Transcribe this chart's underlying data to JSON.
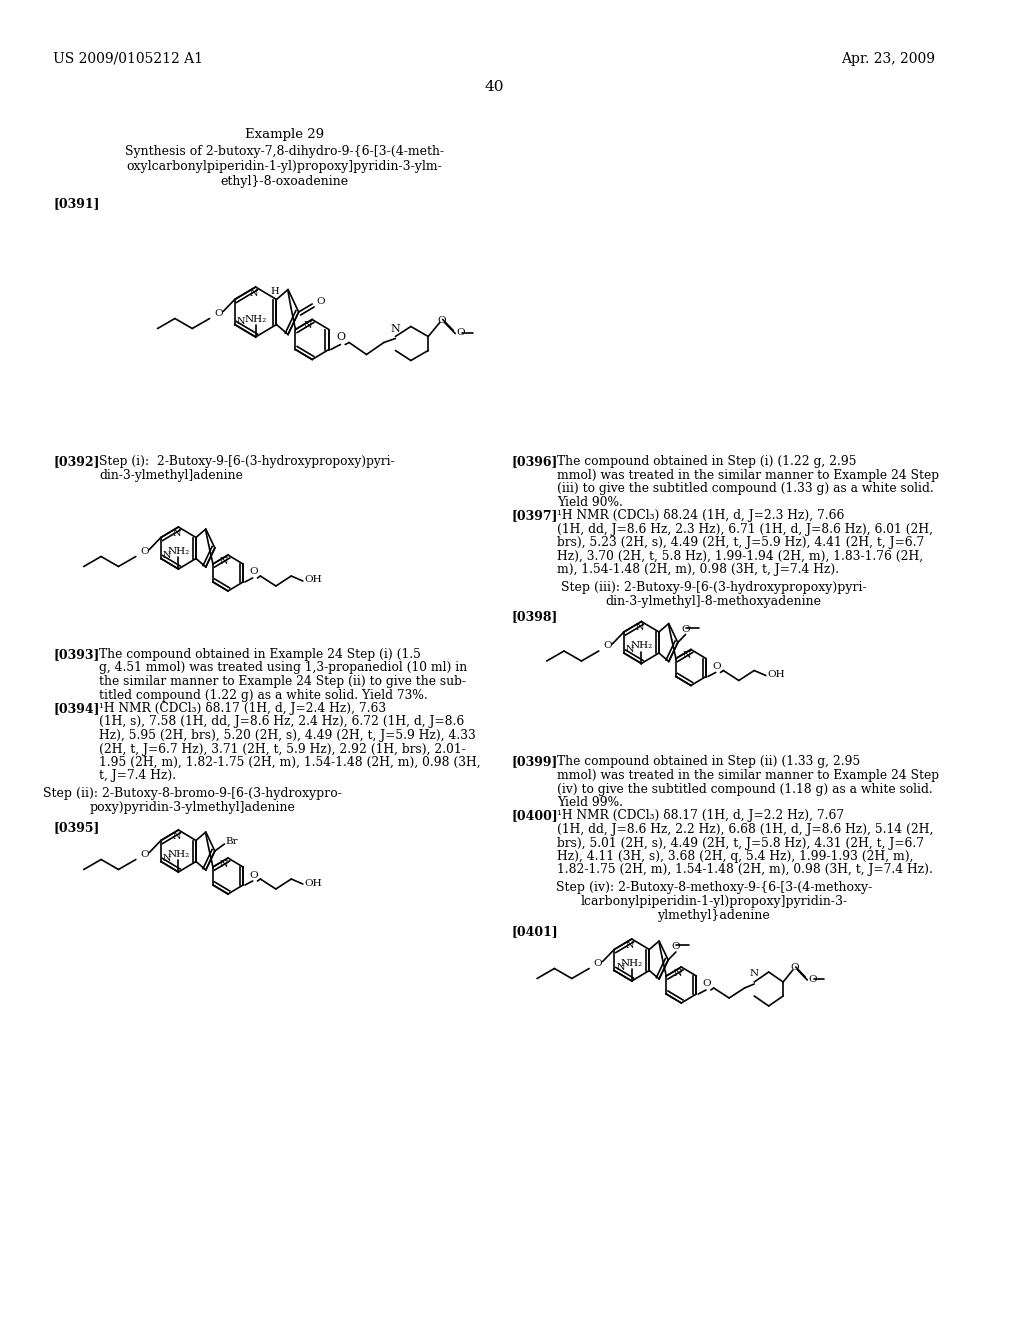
{
  "bg": "#ffffff",
  "header_left": "US 2009/0105212 A1",
  "header_right": "Apr. 23, 2009",
  "page_num": "40",
  "ex_title": "Example 29",
  "ex_sub1": "Synthesis of 2-butoxy-7,8-dihydro-9-{6-[3-(4-meth-",
  "ex_sub2": "oxylcarbonylpiperidin-1-yl)propoxy]pyridin-3-ylm-",
  "ex_sub3": "ethyl}-8-oxoadenine",
  "p391": "[0391]",
  "p392_label": "[0392]",
  "p392_text1": "Step (i):  2-Butoxy-9-[6-(3-hydroxypropoxy)pyri-",
  "p392_text2": "din-3-ylmethyl]adenine",
  "p393_label": "[0393]",
  "p393_lines": [
    "The compound obtained in Example 24 Step (i) (1.5",
    "g, 4.51 mmol) was treated using 1,3-propanediol (10 ml) in",
    "the similar manner to Example 24 Step (ii) to give the sub-",
    "titled compound (1.22 g) as a white solid. Yield 73%."
  ],
  "p394_label": "[0394]",
  "p394_lines": [
    "¹H NMR (CDCl₃) δ8.17 (1H, d, J=2.4 Hz), 7.63",
    "(1H, s), 7.58 (1H, dd, J=8.6 Hz, 2.4 Hz), 6.72 (1H, d, J=8.6",
    "Hz), 5.95 (2H, brs), 5.20 (2H, s), 4.49 (2H, t, J=5.9 Hz), 4.33",
    "(2H, t, J=6.7 Hz), 3.71 (2H, t, 5.9 Hz), 2.92 (1H, brs), 2.01-",
    "1.95 (2H, m), 1.82-1.75 (2H, m), 1.54-1.48 (2H, m), 0.98 (3H,",
    "t, J=7.4 Hz)."
  ],
  "step2_t1": "Step (ii): 2-Butoxy-8-bromo-9-[6-(3-hydroxypro-",
  "step2_t2": "poxy)pyridin-3-ylmethyl]adenine",
  "p395_label": "[0395]",
  "p396_label": "[0396]",
  "p396_lines": [
    "The compound obtained in Step (i) (1.22 g, 2.95",
    "mmol) was treated in the similar manner to Example 24 Step",
    "(iii) to give the subtitled compound (1.33 g) as a white solid.",
    "Yield 90%."
  ],
  "p397_label": "[0397]",
  "p397_lines": [
    "¹H NMR (CDCl₃) δ8.24 (1H, d, J=2.3 Hz), 7.66",
    "(1H, dd, J=8.6 Hz, 2.3 Hz), 6.71 (1H, d, J=8.6 Hz), 6.01 (2H,",
    "brs), 5.23 (2H, s), 4.49 (2H, t, J=5.9 Hz), 4.41 (2H, t, J=6.7",
    "Hz), 3.70 (2H, t, 5.8 Hz), 1.99-1.94 (2H, m), 1.83-1.76 (2H,",
    "m), 1.54-1.48 (2H, m), 0.98 (3H, t, J=7.4 Hz)."
  ],
  "step3_t1": "Step (iii): 2-Butoxy-9-[6-(3-hydroxypropoxy)pyri-",
  "step3_t2": "din-3-ylmethyl]-8-methoxyadenine",
  "p398_label": "[0398]",
  "p399_label": "[0399]",
  "p399_lines": [
    "The compound obtained in Step (ii) (1.33 g, 2.95",
    "mmol) was treated in the similar manner to Example 24 Step",
    "(iv) to give the subtitled compound (1.18 g) as a white solid.",
    "Yield 99%."
  ],
  "p400_label": "[0400]",
  "p400_lines": [
    "¹H NMR (CDCl₃) δ8.17 (1H, d, J=2.2 Hz), 7.67",
    "(1H, dd, J=8.6 Hz, 2.2 Hz), 6.68 (1H, d, J=8.6 Hz), 5.14 (2H,",
    "brs), 5.01 (2H, s), 4.49 (2H, t, J=5.8 Hz), 4.31 (2H, t, J=6.7",
    "Hz), 4.11 (3H, s), 3.68 (2H, q, 5.4 Hz), 1.99-1.93 (2H, m),",
    "1.82-1.75 (2H, m), 1.54-1.48 (2H, m), 0.98 (3H, t, J=7.4 Hz)."
  ],
  "step4_t1": "Step (iv): 2-Butoxy-8-methoxy-9-{6-[3-(4-methoxy-",
  "step4_t2": "lcarbonylpiperidin-1-yl)propoxy]pyridin-3-",
  "step4_t3": "ylmethyl}adenine",
  "p401_label": "[0401]"
}
